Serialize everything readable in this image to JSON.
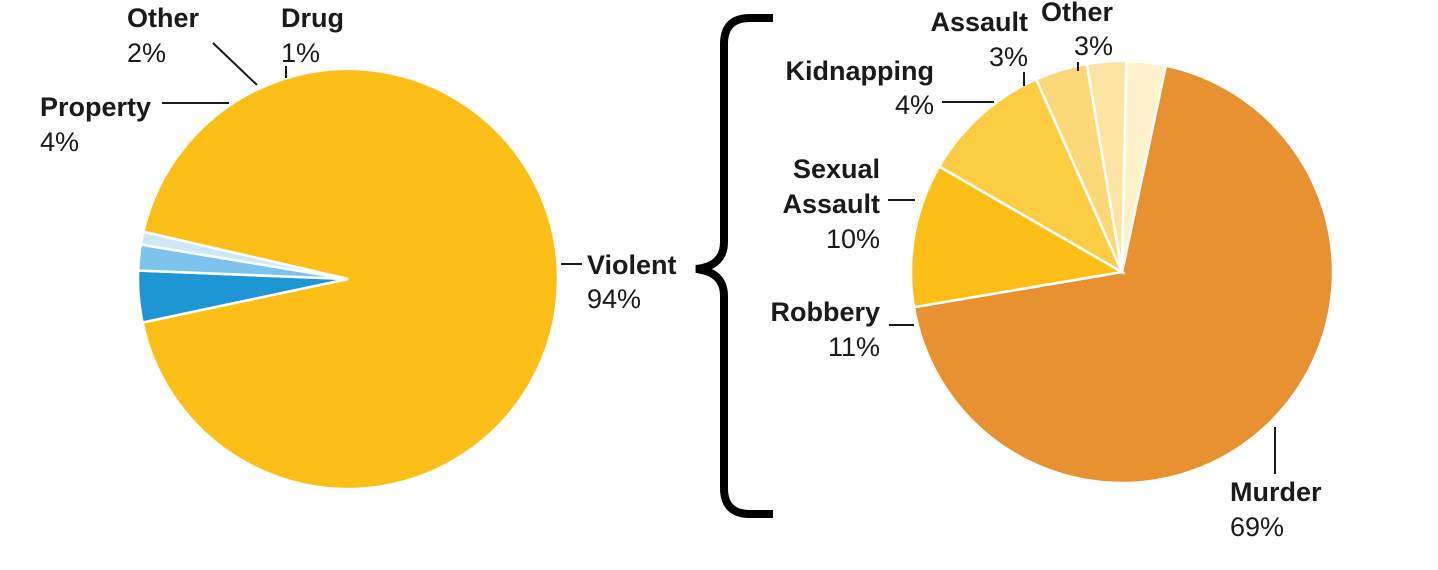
{
  "chart_data": [
    {
      "type": "pie",
      "slices": [
        {
          "label": "Violent",
          "pct_label": "94%",
          "value": 94,
          "color": "#FCBF17"
        },
        {
          "label": "Property",
          "pct_label": "4%",
          "value": 4,
          "color": "#1F96D4"
        },
        {
          "label": "Other",
          "pct_label": "2%",
          "value": 2,
          "color": "#7CC4EB"
        },
        {
          "label": "Drug",
          "pct_label": "1%",
          "value": 1,
          "color": "#CDE9F8"
        }
      ]
    },
    {
      "type": "pie",
      "slices": [
        {
          "label": "Murder",
          "pct_label": "69%",
          "value": 69,
          "color": "#E79130"
        },
        {
          "label": "Robbery",
          "pct_label": "11%",
          "value": 11,
          "color": "#FCBF17"
        },
        {
          "label": "Sexual Assault",
          "label_lines": [
            "Sexual",
            "Assault"
          ],
          "pct_label": "10%",
          "value": 10,
          "color": "#FCCC42"
        },
        {
          "label": "Kidnapping",
          "pct_label": "4%",
          "value": 4,
          "color": "#FBD877"
        },
        {
          "label": "Assault",
          "pct_label": "3%",
          "value": 3,
          "color": "#FCE4A2"
        },
        {
          "label": "Other",
          "pct_label": "3%",
          "value": 3,
          "color": "#FEF2CB"
        }
      ]
    }
  ]
}
